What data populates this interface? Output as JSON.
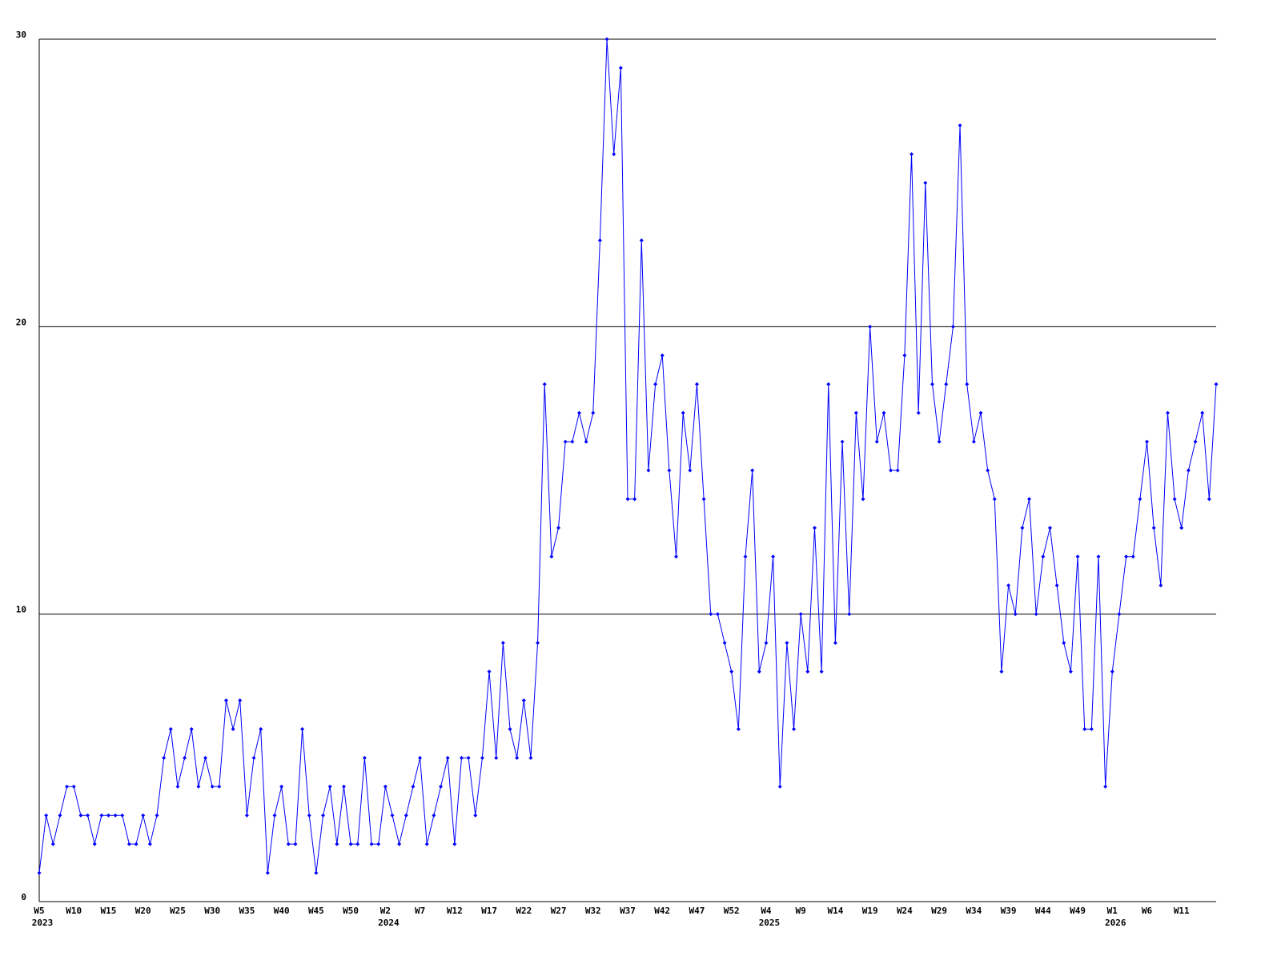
{
  "chart_data": {
    "type": "line",
    "categories": [
      "W5",
      null,
      null,
      null,
      null,
      "W10",
      null,
      null,
      null,
      null,
      "W15",
      null,
      null,
      null,
      null,
      "W20",
      null,
      null,
      null,
      null,
      "W25",
      null,
      null,
      null,
      null,
      "W30",
      null,
      null,
      null,
      null,
      "W35",
      null,
      null,
      null,
      null,
      "W40",
      null,
      null,
      null,
      null,
      "W45",
      null,
      null,
      null,
      null,
      "W50",
      null,
      null,
      null,
      null,
      "W2",
      null,
      null,
      null,
      null,
      "W7",
      null,
      null,
      null,
      null,
      "W12",
      null,
      null,
      null,
      null,
      "W17",
      null,
      null,
      null,
      null,
      "W22",
      null,
      null,
      null,
      null,
      "W27",
      null,
      null,
      null,
      null,
      "W32",
      null,
      null,
      null,
      null,
      "W37",
      null,
      null,
      null,
      null,
      "W42",
      null,
      null,
      null,
      null,
      "W47",
      null,
      null,
      null,
      null,
      "W52",
      null,
      null,
      null,
      null,
      "W4",
      null,
      null,
      null,
      null,
      "W9",
      null,
      null,
      null,
      null,
      "W14",
      null,
      null,
      null,
      null,
      "W19",
      null,
      null,
      null,
      null,
      "W24",
      null,
      null,
      null,
      null,
      "W29",
      null,
      null,
      null,
      null,
      "W34",
      null,
      null,
      null,
      null,
      "W39",
      null,
      null,
      null,
      null,
      "W44",
      null,
      null,
      null,
      null,
      "W49",
      null,
      null,
      null,
      null,
      "W1",
      null,
      null,
      null,
      null,
      "W6",
      null,
      null,
      null,
      null,
      "W11",
      null,
      null,
      null,
      null,
      null
    ],
    "years": [
      "2023",
      null,
      null,
      null,
      null,
      null,
      null,
      null,
      null,
      null,
      null,
      null,
      null,
      null,
      null,
      null,
      null,
      null,
      null,
      null,
      null,
      null,
      null,
      null,
      null,
      null,
      null,
      null,
      null,
      null,
      null,
      null,
      null,
      null,
      null,
      null,
      null,
      null,
      null,
      null,
      null,
      null,
      null,
      null,
      null,
      null,
      null,
      null,
      null,
      null,
      "2024",
      null,
      null,
      null,
      null,
      null,
      null,
      null,
      null,
      null,
      null,
      null,
      null,
      null,
      null,
      null,
      null,
      null,
      null,
      null,
      null,
      null,
      null,
      null,
      null,
      null,
      null,
      null,
      null,
      null,
      null,
      null,
      null,
      null,
      null,
      null,
      null,
      null,
      null,
      null,
      null,
      null,
      null,
      null,
      null,
      null,
      null,
      null,
      null,
      null,
      null,
      null,
      null,
      null,
      null,
      "2025",
      null,
      null,
      null,
      null,
      null,
      null,
      null,
      null,
      null,
      null,
      null,
      null,
      null,
      null,
      null,
      null,
      null,
      null,
      null,
      null,
      null,
      null,
      null,
      null,
      null,
      null,
      null,
      null,
      null,
      null,
      null,
      null,
      null,
      null,
      null,
      null,
      null,
      null,
      null,
      null,
      null,
      null,
      null,
      null,
      null,
      null,
      null,
      null,
      null,
      "2026",
      null,
      null,
      null,
      null,
      null,
      null,
      null,
      null,
      null,
      null,
      null,
      null,
      null,
      null,
      null
    ],
    "values": [
      1,
      3,
      2,
      3,
      4,
      4,
      3,
      3,
      2,
      3,
      3,
      3,
      3,
      2,
      2,
      3,
      2,
      3,
      5,
      6,
      4,
      5,
      6,
      4,
      5,
      4,
      4,
      7,
      6,
      7,
      3,
      5,
      6,
      1,
      3,
      4,
      2,
      2,
      6,
      3,
      1,
      3,
      4,
      2,
      4,
      2,
      2,
      5,
      2,
      2,
      4,
      3,
      2,
      3,
      4,
      5,
      2,
      3,
      4,
      5,
      2,
      5,
      5,
      3,
      5,
      8,
      5,
      9,
      6,
      5,
      7,
      5,
      9,
      18,
      12,
      13,
      16,
      16,
      17,
      16,
      17,
      23,
      30,
      26,
      29,
      14,
      14,
      23,
      15,
      18,
      19,
      15,
      12,
      17,
      15,
      18,
      14,
      10,
      10,
      9,
      8,
      6,
      12,
      15,
      8,
      9,
      12,
      4,
      9,
      6,
      10,
      8,
      13,
      8,
      18,
      9,
      16,
      10,
      17,
      14,
      20,
      16,
      17,
      15,
      15,
      19,
      26,
      17,
      25,
      18,
      16,
      18,
      20,
      27,
      18,
      16,
      17,
      15,
      14,
      8,
      11,
      10,
      13,
      14,
      10,
      12,
      13,
      11,
      9,
      8,
      12,
      6,
      6,
      12,
      4,
      8,
      10,
      12,
      12,
      14,
      16,
      13,
      11,
      17,
      14,
      13,
      15,
      16,
      17,
      14,
      18
    ],
    "color": "#0000ff",
    "ylim": [
      0,
      30
    ],
    "yticks": [
      0,
      10,
      20,
      30
    ],
    "grid": true
  }
}
